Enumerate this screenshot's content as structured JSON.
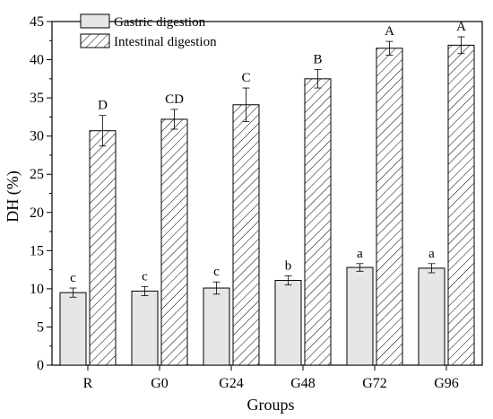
{
  "chart_data": {
    "type": "bar",
    "title": "",
    "xlabel": "Groups",
    "ylabel": "DH (%)",
    "ylim": [
      0,
      45
    ],
    "yticks": [
      0,
      5,
      10,
      15,
      20,
      25,
      30,
      35,
      40,
      45
    ],
    "categories": [
      "R",
      "G0",
      "G24",
      "G48",
      "G72",
      "G96"
    ],
    "legend_position": "top-left",
    "grid": false,
    "series": [
      {
        "name": "Gastric digestion",
        "fill": "#e6e6e6",
        "pattern": "solid",
        "values": [
          9.5,
          9.7,
          10.1,
          11.1,
          12.8,
          12.7
        ],
        "errors": [
          0.6,
          0.6,
          0.8,
          0.6,
          0.5,
          0.6
        ],
        "labels": [
          "c",
          "c",
          "c",
          "b",
          "a",
          "a"
        ]
      },
      {
        "name": "Intestinal digestion",
        "fill": "#ffffff",
        "pattern": "diagonal-hatch",
        "values": [
          30.7,
          32.2,
          34.1,
          37.5,
          41.5,
          41.9
        ],
        "errors": [
          2.0,
          1.3,
          2.2,
          1.2,
          0.9,
          1.1
        ],
        "labels": [
          "D",
          "CD",
          "C",
          "B",
          "A",
          "A"
        ]
      }
    ]
  }
}
